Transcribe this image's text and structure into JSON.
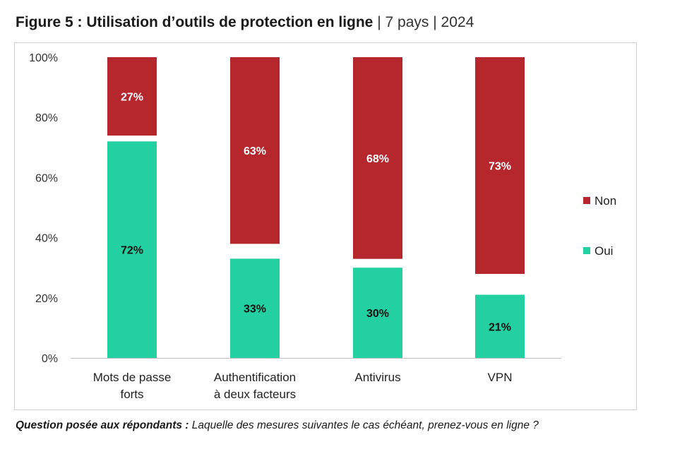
{
  "title": {
    "main": "Figure 5 : Utilisation d’outils de protection en ligne",
    "sep1": "|",
    "countries": "7 pays",
    "sep2": "|",
    "year": "2024"
  },
  "colors": {
    "non": "#b5272d",
    "oui": "#22d0a1"
  },
  "chart_data": {
    "type": "bar",
    "stacked": true,
    "categories": [
      [
        "Mots de passe",
        "forts"
      ],
      [
        "Authentification",
        "à deux facteurs"
      ],
      [
        "Antivirus"
      ],
      [
        "VPN"
      ]
    ],
    "series": [
      {
        "name": "Oui",
        "values": [
          72,
          33,
          30,
          21
        ],
        "labels": [
          "72%",
          "33%",
          "30%",
          "21%"
        ]
      },
      {
        "name": "Non",
        "values": [
          27,
          63,
          68,
          73
        ],
        "labels": [
          "27%",
          "63%",
          "68%",
          "73%"
        ]
      }
    ],
    "yticks": [
      "0%",
      "20%",
      "40%",
      "60%",
      "80%",
      "100%"
    ],
    "ylim": [
      0,
      100
    ],
    "grid": false,
    "legend_position": "right"
  },
  "note": {
    "label": "Question posée aux répondants :",
    "text": " Laquelle des mesures suivantes le cas échéant, prenez-vous en ligne ?"
  }
}
